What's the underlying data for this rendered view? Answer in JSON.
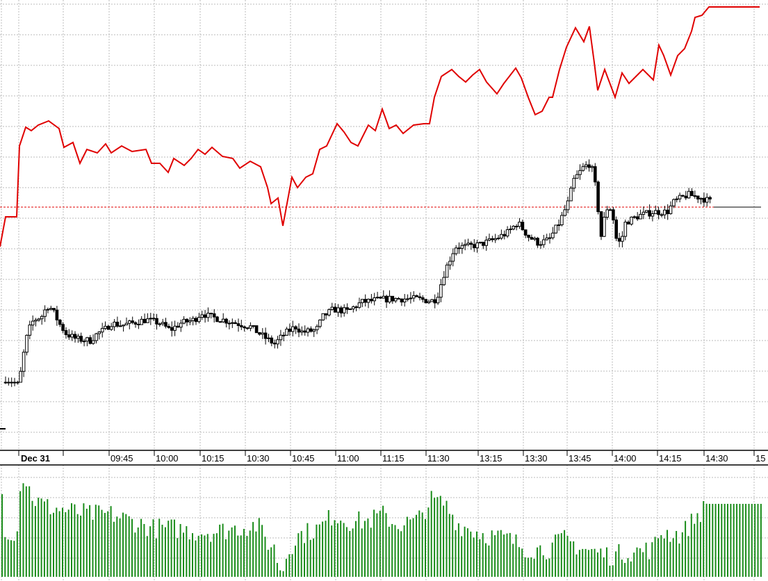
{
  "chart_data": {
    "type": "line",
    "title": "",
    "xlabel": "",
    "ylabel": "",
    "grid": true,
    "legend": "none",
    "x_tick_labels": [
      "Dec 31",
      "09:45",
      "10:00",
      "10:15",
      "10:30",
      "10:45",
      "11:00",
      "11:15",
      "11:30",
      "13:15",
      "13:30",
      "13:45",
      "14:00",
      "14:15",
      "14:30",
      "15"
    ],
    "reference_level": 32.4,
    "series": [
      {
        "name": "comparison-line",
        "type": "line",
        "color": "#e00000",
        "points": [
          [
            0,
            26.7
          ],
          [
            1.6,
            31
          ],
          [
            4.8,
            31
          ],
          [
            5.6,
            41.2
          ],
          [
            7.4,
            43.9
          ],
          [
            9,
            43.4
          ],
          [
            11,
            44.2
          ],
          [
            14,
            44.8
          ],
          [
            17,
            43.7
          ],
          [
            18.4,
            41
          ],
          [
            21,
            41.7
          ],
          [
            23,
            38.7
          ],
          [
            25,
            40.7
          ],
          [
            28,
            40.2
          ],
          [
            30.4,
            41.5
          ],
          [
            32,
            40.2
          ],
          [
            35,
            41.2
          ],
          [
            38,
            40.4
          ],
          [
            42,
            40.7
          ],
          [
            43.6,
            38.7
          ],
          [
            46,
            38.7
          ],
          [
            48.4,
            37.4
          ],
          [
            50,
            39.4
          ],
          [
            53,
            38.4
          ],
          [
            55,
            39.4
          ],
          [
            57,
            40.7
          ],
          [
            59,
            40
          ],
          [
            61,
            41
          ],
          [
            64,
            39.7
          ],
          [
            67,
            39.4
          ],
          [
            69,
            38
          ],
          [
            72,
            39
          ],
          [
            75,
            38.2
          ],
          [
            77,
            35.2
          ],
          [
            78,
            32.9
          ],
          [
            80,
            33.7
          ],
          [
            81.4,
            29.7
          ],
          [
            84,
            36.7
          ],
          [
            85.6,
            35.2
          ],
          [
            88,
            36.7
          ],
          [
            90,
            37.2
          ],
          [
            92,
            40.7
          ],
          [
            94,
            41.2
          ],
          [
            97,
            44.4
          ],
          [
            99,
            43.2
          ],
          [
            101,
            41.7
          ],
          [
            103,
            41.2
          ],
          [
            106,
            44.2
          ],
          [
            108,
            43.4
          ],
          [
            110,
            46.5
          ],
          [
            112,
            43.7
          ],
          [
            114,
            44.2
          ],
          [
            116,
            43
          ],
          [
            119,
            44.2
          ],
          [
            122,
            44.4
          ],
          [
            123.6,
            44.4
          ],
          [
            125,
            48.2
          ],
          [
            127,
            51.2
          ],
          [
            130,
            52.2
          ],
          [
            132,
            51.2
          ],
          [
            134,
            50.4
          ],
          [
            136,
            51.4
          ],
          [
            138,
            52.2
          ],
          [
            140,
            50.4
          ],
          [
            143,
            48.7
          ],
          [
            145,
            50.2
          ],
          [
            148.4,
            52.4
          ],
          [
            150,
            51
          ],
          [
            152,
            48.2
          ],
          [
            154,
            45.7
          ],
          [
            156,
            46.2
          ],
          [
            158,
            48.2
          ],
          [
            159,
            48.2
          ],
          [
            161,
            52.2
          ],
          [
            163,
            55.4
          ],
          [
            165.6,
            58.2
          ],
          [
            168,
            56.2
          ],
          [
            169.6,
            58.4
          ],
          [
            171,
            53.2
          ],
          [
            172,
            49.2
          ],
          [
            174,
            52.2
          ],
          [
            177,
            48.2
          ],
          [
            179,
            51.7
          ],
          [
            181,
            50.2
          ],
          [
            183,
            51.2
          ],
          [
            185,
            52.2
          ],
          [
            188,
            50.7
          ],
          [
            189.6,
            55.7
          ],
          [
            191,
            54.2
          ],
          [
            193,
            51.4
          ],
          [
            195,
            54.2
          ],
          [
            197,
            55.2
          ],
          [
            199,
            57.7
          ],
          [
            200,
            59.7
          ],
          [
            202,
            60
          ],
          [
            204,
            61.2
          ],
          [
            218.6,
            61.2
          ]
        ]
      },
      {
        "name": "price-candles",
        "type": "candlestick",
        "color": "#000000",
        "closes": [
          [
            1.6,
            4.5
          ],
          [
            5.4,
            7
          ],
          [
            6,
            8.7
          ],
          [
            7.4,
            13.2
          ],
          [
            9,
            15.7
          ],
          [
            10,
            16.2
          ],
          [
            12,
            16.7
          ],
          [
            13.6,
            18.2
          ],
          [
            15,
            17.7
          ],
          [
            17,
            15.7
          ],
          [
            19,
            14.2
          ],
          [
            22,
            13.4
          ],
          [
            26,
            13.2
          ],
          [
            28,
            14.2
          ],
          [
            30,
            14.7
          ],
          [
            32,
            15.7
          ],
          [
            35,
            15.4
          ],
          [
            38,
            15.7
          ],
          [
            42,
            16.2
          ],
          [
            46,
            15.7
          ],
          [
            49,
            14.7
          ],
          [
            52,
            15.7
          ],
          [
            56,
            16.2
          ],
          [
            58,
            17.2
          ],
          [
            60,
            16.7
          ],
          [
            64,
            16.2
          ],
          [
            68,
            15.7
          ],
          [
            72,
            15.2
          ],
          [
            76,
            13.7
          ],
          [
            79,
            12.7
          ],
          [
            82,
            14.2
          ],
          [
            85,
            15.2
          ],
          [
            87,
            14.4
          ],
          [
            91,
            14.7
          ],
          [
            93,
            16.7
          ],
          [
            96,
            17.7
          ],
          [
            100,
            17.4
          ],
          [
            104,
            18.7
          ],
          [
            108,
            19
          ],
          [
            112,
            19.2
          ],
          [
            116,
            19.2
          ],
          [
            120,
            19.2
          ],
          [
            124,
            18.9
          ],
          [
            125.6,
            19.2
          ],
          [
            128,
            23.2
          ],
          [
            131,
            26.7
          ],
          [
            134,
            26.7
          ],
          [
            138,
            27
          ],
          [
            142,
            27.7
          ],
          [
            146,
            28.7
          ],
          [
            149,
            30.2
          ],
          [
            152,
            28.2
          ],
          [
            155,
            27.2
          ],
          [
            158,
            27.7
          ],
          [
            161,
            30.2
          ],
          [
            163.6,
            33.2
          ],
          [
            165,
            36.2
          ],
          [
            168,
            38.2
          ],
          [
            170,
            38.7
          ],
          [
            171.4,
            35.2
          ],
          [
            173,
            28.2
          ],
          [
            174.4,
            32.2
          ],
          [
            176,
            32.2
          ],
          [
            177.4,
            27.7
          ],
          [
            178.6,
            27.2
          ],
          [
            180,
            30.2
          ],
          [
            184,
            31.2
          ],
          [
            188,
            31.7
          ],
          [
            192,
            31.7
          ],
          [
            194,
            33.2
          ],
          [
            198,
            34.2
          ],
          [
            202,
            33.7
          ],
          [
            204.4,
            33.2
          ],
          [
            206,
            32.4
          ],
          [
            218.6,
            32.4
          ]
        ]
      },
      {
        "name": "volume",
        "type": "bar",
        "color": "#1a8c1a",
        "points": [
          [
            0.6,
            12
          ],
          [
            1.6,
            6.5
          ],
          [
            5,
            6.5
          ],
          [
            6,
            15
          ],
          [
            8,
            13
          ],
          [
            10,
            11
          ],
          [
            14,
            10
          ],
          [
            20,
            9.5
          ],
          [
            26,
            9
          ],
          [
            32,
            9
          ],
          [
            38,
            8
          ],
          [
            44,
            7
          ],
          [
            50,
            7
          ],
          [
            56,
            6.5
          ],
          [
            62,
            6.5
          ],
          [
            68,
            7
          ],
          [
            74,
            7.5
          ],
          [
            77,
            5
          ],
          [
            79,
            4
          ],
          [
            81,
            0.5
          ],
          [
            83,
            4
          ],
          [
            86,
            6
          ],
          [
            92,
            7
          ],
          [
            96,
            9
          ],
          [
            100,
            8
          ],
          [
            106,
            8
          ],
          [
            110,
            9
          ],
          [
            114,
            7.5
          ],
          [
            120,
            8
          ],
          [
            124,
            11
          ],
          [
            128,
            10.5
          ],
          [
            132,
            7.5
          ],
          [
            140,
            6
          ],
          [
            146,
            5.5
          ],
          [
            152,
            4
          ],
          [
            158,
            4
          ],
          [
            162,
            5.5
          ],
          [
            168,
            4
          ],
          [
            176,
            3
          ],
          [
            180,
            3.5
          ],
          [
            188,
            4
          ],
          [
            190,
            6.5
          ],
          [
            196,
            6
          ],
          [
            200,
            8.5
          ],
          [
            204,
            10.5
          ],
          [
            219,
            10.5
          ]
        ]
      }
    ]
  }
}
